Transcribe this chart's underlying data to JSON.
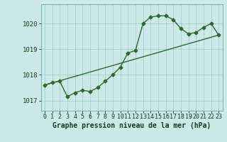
{
  "line1_x": [
    0,
    1,
    2,
    3,
    4,
    5,
    6,
    7,
    8,
    9,
    10,
    11,
    12,
    13,
    14,
    15,
    16,
    17,
    18,
    19,
    20,
    21,
    22,
    23
  ],
  "line1_y": [
    1017.6,
    1017.7,
    1017.75,
    1017.15,
    1017.3,
    1017.4,
    1017.35,
    1017.5,
    1017.75,
    1018.0,
    1018.3,
    1018.85,
    1018.95,
    1020.0,
    1020.25,
    1020.3,
    1020.3,
    1020.15,
    1019.8,
    1019.6,
    1019.65,
    1019.85,
    1020.0,
    1019.55
  ],
  "line2_x": [
    0,
    23
  ],
  "line2_y": [
    1017.6,
    1019.55
  ],
  "color": "#2d6a2d",
  "bg_color": "#cce8e8",
  "grid_color": "#99cccc",
  "title": "Graphe pression niveau de la mer (hPa)",
  "ylim": [
    1016.6,
    1020.75
  ],
  "yticks": [
    1017,
    1018,
    1019,
    1020
  ],
  "xticks": [
    0,
    1,
    2,
    3,
    4,
    5,
    6,
    7,
    8,
    9,
    10,
    11,
    12,
    13,
    14,
    15,
    16,
    17,
    18,
    19,
    20,
    21,
    22,
    23
  ],
  "xtick_fontsize": 6.0,
  "ytick_fontsize": 6.5,
  "title_fontsize": 7.0,
  "marker": "D",
  "marker_size": 2.5,
  "line_width": 1.0
}
